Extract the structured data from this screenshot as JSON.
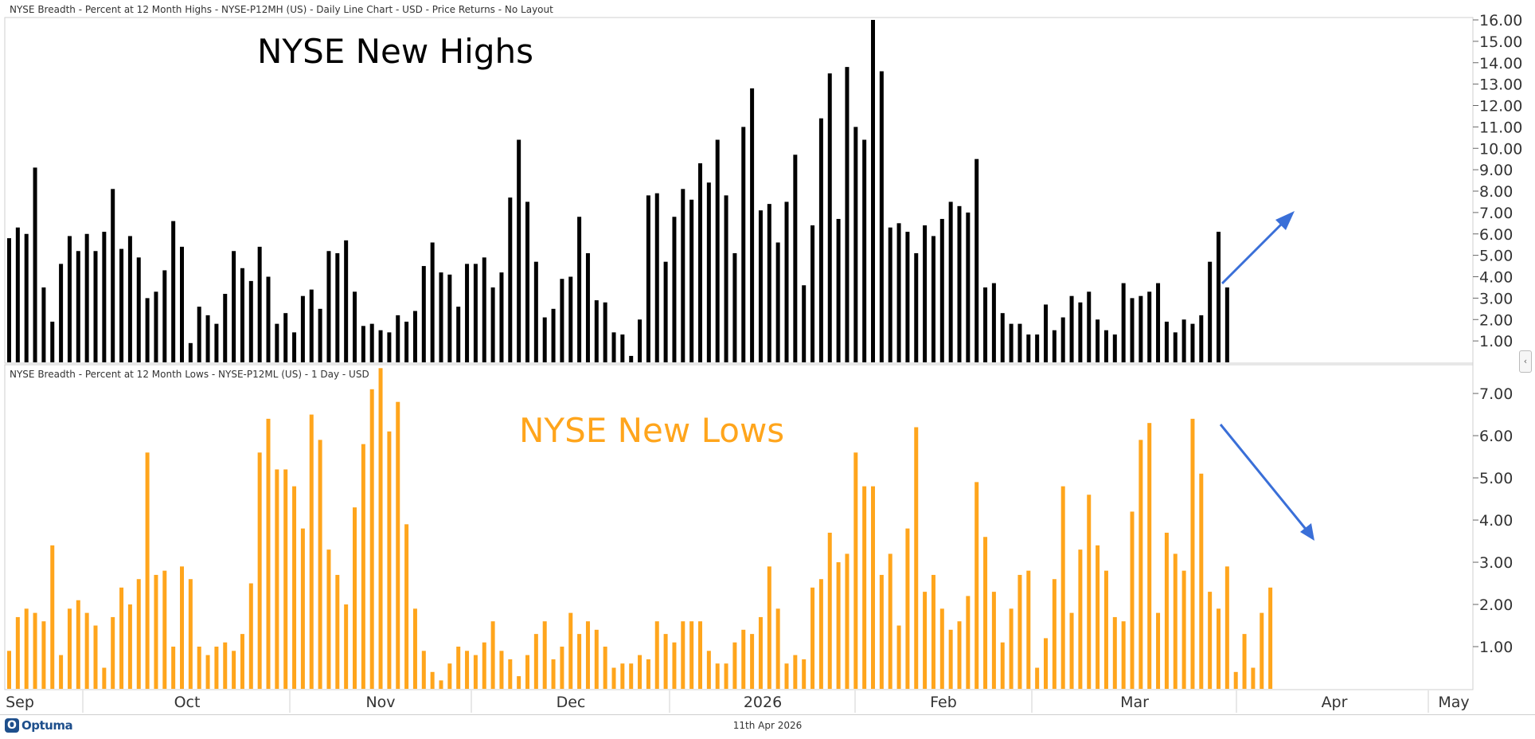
{
  "colors": {
    "highs_bar": "#000000",
    "lows_bar": "#FFA51C",
    "lows_title": "#FFA51C",
    "arrow": "#3A6FD8",
    "grid": "#d9d9d9"
  },
  "panels": {
    "top": {
      "header": "NYSE Breadth - Percent at 12 Month Highs - NYSE-P12MH (US) - Daily Line Chart - USD - Price Returns - No Layout",
      "title": "NYSE New Highs"
    },
    "bottom": {
      "header": "NYSE Breadth - Percent at 12 Month Lows - NYSE-P12ML (US) - 1 Day - USD",
      "title": "NYSE New Lows"
    }
  },
  "footer": {
    "logo_text": "Optuma",
    "date": "11th Apr 2026"
  },
  "chart_data": [
    {
      "type": "bar",
      "series_name": "NYSE Breadth - Percent at 12 Month Highs - NYSE-P12MH (US)",
      "y_ticks": [
        "1.00",
        "2.00",
        "3.00",
        "4.00",
        "5.00",
        "6.00",
        "7.00",
        "8.00",
        "9.00",
        "10.00",
        "11.00",
        "12.00",
        "13.00",
        "14.00",
        "15.00",
        "16.00"
      ],
      "ylim": [
        0,
        16
      ],
      "values": [
        5.8,
        6.3,
        6.0,
        9.1,
        3.5,
        1.9,
        4.6,
        5.9,
        5.2,
        6.0,
        5.2,
        6.1,
        8.1,
        5.3,
        5.9,
        4.9,
        3.0,
        3.3,
        4.3,
        6.6,
        5.4,
        0.9,
        2.6,
        2.2,
        1.8,
        3.2,
        5.2,
        4.4,
        3.8,
        5.4,
        4.0,
        1.8,
        2.3,
        1.4,
        3.1,
        3.4,
        2.5,
        5.2,
        5.1,
        5.7,
        3.3,
        1.7,
        1.8,
        1.5,
        1.4,
        2.2,
        1.9,
        2.4,
        4.5,
        5.6,
        4.2,
        4.1,
        2.6,
        4.6,
        4.6,
        4.9,
        3.5,
        4.2,
        7.7,
        10.4,
        7.5,
        4.7,
        2.1,
        2.5,
        3.9,
        4.0,
        6.8,
        5.1,
        2.9,
        2.8,
        1.4,
        1.3,
        0.3,
        2.0,
        7.8,
        7.9,
        4.7,
        6.8,
        8.1,
        7.6,
        9.3,
        8.4,
        10.4,
        7.8,
        5.1,
        11.0,
        12.8,
        7.1,
        7.4,
        5.6,
        7.5,
        9.7,
        3.6,
        6.4,
        11.4,
        13.5,
        6.7,
        13.8,
        11.0,
        10.4,
        16.0,
        13.6,
        6.3,
        6.5,
        6.1,
        5.1,
        6.4,
        5.9,
        6.7,
        7.5,
        7.3,
        7.0,
        9.5,
        3.5,
        3.7,
        2.3,
        1.8,
        1.8,
        1.3,
        1.3,
        2.7,
        1.5,
        2.1,
        3.1,
        2.8,
        3.3,
        2.0,
        1.5,
        1.3,
        3.7,
        3.0,
        3.1,
        3.3,
        3.7,
        1.9,
        1.4,
        2.0,
        1.8,
        2.2,
        4.7,
        6.1,
        3.5
      ]
    },
    {
      "type": "bar",
      "series_name": "NYSE Breadth - Percent at 12 Month Lows - NYSE-P12ML (US)",
      "y_ticks": [
        "1.00",
        "2.00",
        "3.00",
        "4.00",
        "5.00",
        "6.00",
        "7.00"
      ],
      "ylim": [
        0,
        7.7
      ],
      "values": [
        0.9,
        1.7,
        1.9,
        1.8,
        1.6,
        3.4,
        0.8,
        1.9,
        2.1,
        1.8,
        1.5,
        0.5,
        1.7,
        2.4,
        2.0,
        2.6,
        5.6,
        2.7,
        2.8,
        1.0,
        2.9,
        2.6,
        1.0,
        0.8,
        1.0,
        1.1,
        0.9,
        1.3,
        2.5,
        5.6,
        6.4,
        5.2,
        5.2,
        4.8,
        3.8,
        6.5,
        5.9,
        3.3,
        2.7,
        2.0,
        4.3,
        5.8,
        7.1,
        7.6,
        6.1,
        6.8,
        3.9,
        1.9,
        0.9,
        0.4,
        0.2,
        0.6,
        1.0,
        0.9,
        0.8,
        1.1,
        1.6,
        0.9,
        0.7,
        0.3,
        0.8,
        1.3,
        1.6,
        0.7,
        1.0,
        1.8,
        1.3,
        1.6,
        1.4,
        1.0,
        0.5,
        0.6,
        0.6,
        0.8,
        0.7,
        1.6,
        1.3,
        1.1,
        1.6,
        1.6,
        1.6,
        0.9,
        0.6,
        0.6,
        1.1,
        1.4,
        1.3,
        1.7,
        2.9,
        1.9,
        0.6,
        0.8,
        0.7,
        2.4,
        2.6,
        3.7,
        3.0,
        3.2,
        5.6,
        4.8,
        4.8,
        2.7,
        3.2,
        1.5,
        3.8,
        6.2,
        2.3,
        2.7,
        1.9,
        1.4,
        1.6,
        2.2,
        4.9,
        3.6,
        2.3,
        1.1,
        1.9,
        2.7,
        2.8,
        0.5,
        1.2,
        2.6,
        4.8,
        1.8,
        3.3,
        4.6,
        3.4,
        2.8,
        1.7,
        1.6,
        4.2,
        5.9,
        6.3,
        1.8,
        3.7,
        3.2,
        2.8,
        6.4,
        5.1,
        2.3,
        1.9,
        2.9,
        0.4,
        1.3,
        0.5,
        1.8,
        2.4
      ]
    }
  ],
  "x_axis": {
    "labels": [
      "Sep",
      "Oct",
      "Nov",
      "Dec",
      "2026",
      "Feb",
      "Mar",
      "Apr",
      "May"
    ]
  }
}
